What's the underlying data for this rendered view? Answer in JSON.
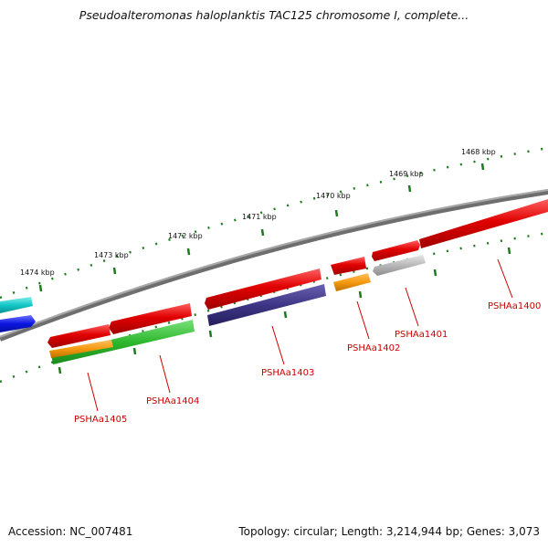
{
  "title": "Pseudoalteromonas haloplanktis TAC125 chromosome I, complete...",
  "footer": {
    "accession": "Accession: NC_007481",
    "summary": "Topology: circular; Length: 3,214,944 bp; Genes: 3,073"
  },
  "kbp_labels": [
    "1468 kbp",
    "1469 kbp",
    "1470 kbp",
    "1471 kbp",
    "1472 kbp",
    "1473 kbp",
    "1474 kbp"
  ],
  "gene_labels": [
    "PSHAa1400",
    "PSHAa1401",
    "PSHAa1402",
    "PSHAa1403",
    "PSHAa1404",
    "PSHAa1405"
  ],
  "colors": {
    "backbone": "#7a7a7a",
    "tick": "#1f7a1f",
    "red": "#e00000",
    "grey": "#b8b8b8",
    "orange": "#f59a10",
    "purple": "#3d3585",
    "green": "#2eb82e",
    "cyan": "#14c8c8",
    "blue": "#0a16e0",
    "gene_label": "#cc0000"
  }
}
